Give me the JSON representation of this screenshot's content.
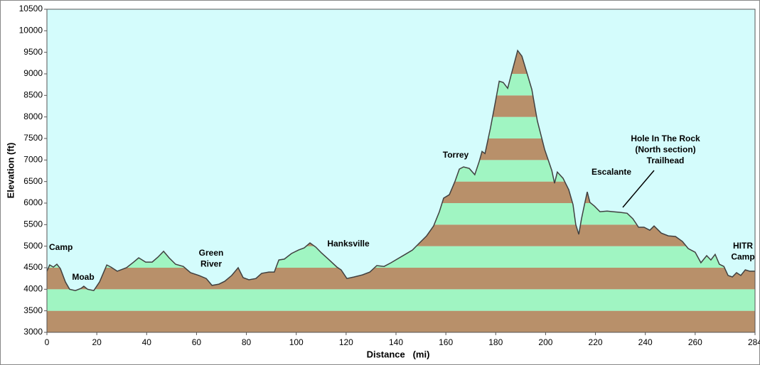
{
  "chart_data": {
    "type": "area",
    "xlabel": "Distance   (mi)",
    "ylabel": "Elevation (ft)",
    "xlim": [
      0,
      284
    ],
    "ylim": [
      3000,
      10500
    ],
    "xticks": [
      0,
      20,
      40,
      60,
      80,
      100,
      120,
      140,
      160,
      180,
      200,
      220,
      240,
      260,
      284
    ],
    "yticks": [
      3000,
      3500,
      4000,
      4500,
      5000,
      5500,
      6000,
      6500,
      7000,
      7500,
      8000,
      8500,
      9000,
      9500,
      10000,
      10500
    ],
    "background": "#d4fcfc",
    "band_colors": [
      "#b8906a",
      "#a0f5c2"
    ],
    "line_color": "#404040",
    "x": [
      0,
      1.1,
      2.6,
      4,
      5.4,
      7.4,
      9.1,
      11.4,
      13.7,
      14.8,
      16.3,
      18.8,
      21.1,
      24,
      25.7,
      28.2,
      31.9,
      34.8,
      36.8,
      39.6,
      42.2,
      44.5,
      46.8,
      49,
      51.6,
      54.7,
      57.6,
      61,
      63.9,
      66.2,
      69,
      71.3,
      74.1,
      76.7,
      78.7,
      81,
      83.8,
      86.1,
      89,
      91.2,
      93,
      95.2,
      98.1,
      100.9,
      103.2,
      105.5,
      107.8,
      110.1,
      112.9,
      116.3,
      118,
      120.3,
      123.2,
      126.6,
      129.5,
      132.3,
      135.2,
      138,
      140.9,
      143.7,
      146.6,
      149.4,
      152.3,
      155.1,
      157.4,
      159.1,
      161.4,
      163.7,
      165.4,
      167.1,
      169.4,
      171.6,
      173.4,
      174.5,
      175.7,
      177.9,
      179.6,
      181.4,
      183,
      184.8,
      186.5,
      188.8,
      190.5,
      192.2,
      194.5,
      196.7,
      199.6,
      202.5,
      203.6,
      204.7,
      207,
      209.3,
      211,
      212.1,
      213.3,
      214.4,
      215.6,
      216.7,
      217.8,
      219.6,
      221.8,
      224.7,
      227,
      229.8,
      232.7,
      235,
      237.3,
      239.5,
      241.8,
      243.5,
      246.4,
      249.2,
      252.1,
      254.9,
      257.2,
      260,
      262.3,
      264.6,
      266.3,
      268,
      269.7,
      271.5,
      273.2,
      274.9,
      276.6,
      278.3,
      280.1,
      281.8,
      284
    ],
    "values": [
      4420,
      4565,
      4515,
      4580,
      4480,
      4170,
      4000,
      3970,
      4020,
      4070,
      4000,
      3970,
      4170,
      4565,
      4515,
      4420,
      4500,
      4630,
      4730,
      4630,
      4630,
      4745,
      4880,
      4730,
      4580,
      4530,
      4385,
      4320,
      4250,
      4090,
      4120,
      4185,
      4320,
      4500,
      4270,
      4220,
      4250,
      4370,
      4400,
      4400,
      4680,
      4700,
      4830,
      4910,
      4960,
      5075,
      4980,
      4845,
      4700,
      4515,
      4450,
      4250,
      4285,
      4335,
      4400,
      4550,
      4530,
      4615,
      4715,
      4810,
      4910,
      5075,
      5240,
      5470,
      5800,
      6115,
      6195,
      6510,
      6790,
      6840,
      6805,
      6660,
      6970,
      7200,
      7150,
      7745,
      8270,
      8830,
      8800,
      8665,
      9045,
      9540,
      9410,
      9080,
      8635,
      7910,
      7250,
      6755,
      6460,
      6720,
      6575,
      6310,
      5965,
      5505,
      5275,
      5635,
      5965,
      6260,
      6015,
      5930,
      5800,
      5815,
      5800,
      5785,
      5765,
      5635,
      5440,
      5440,
      5370,
      5470,
      5305,
      5240,
      5225,
      5110,
      4945,
      4860,
      4615,
      4780,
      4680,
      4810,
      4580,
      4530,
      4320,
      4285,
      4385,
      4320,
      4450,
      4420,
      4420
    ],
    "annotations": [
      [
        "Camp"
      ],
      [
        "Moab"
      ],
      [
        "Green",
        "River"
      ],
      [
        "Hanksville"
      ],
      [
        "Torrey"
      ],
      [
        "Escalante"
      ],
      [
        "Hole In The Rock",
        "(North section)",
        "Trailhead"
      ],
      [
        "HITR",
        "Camp"
      ]
    ]
  }
}
